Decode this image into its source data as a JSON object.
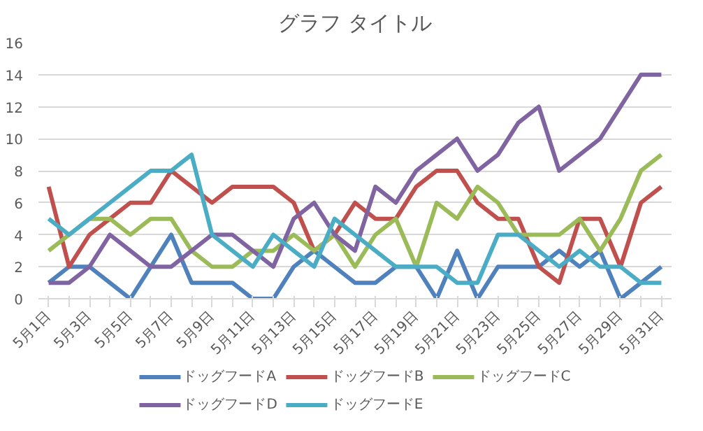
{
  "chart_data": {
    "type": "line",
    "title": "グラフ タイトル",
    "categories": [
      "5月1日",
      null,
      "5月3日",
      null,
      "5月5日",
      null,
      "5月7日",
      null,
      "5月9日",
      null,
      "5月11日",
      null,
      "5月13日",
      null,
      "5月15日",
      null,
      "5月17日",
      null,
      "5月19日",
      null,
      "5月21日",
      null,
      "5月23日",
      null,
      "5月25日",
      null,
      "5月27日",
      null,
      "5月29日",
      null,
      "5月31日"
    ],
    "series": [
      {
        "name": "ドッグフードA",
        "color": "#4f81bd",
        "values": [
          1,
          2,
          2,
          1,
          0,
          2,
          4,
          1,
          1,
          1,
          0,
          0,
          2,
          3,
          2,
          1,
          1,
          2,
          2,
          0,
          3,
          0,
          2,
          2,
          2,
          3,
          2,
          3,
          0,
          1,
          2
        ]
      },
      {
        "name": "ドッグフードB",
        "color": "#c0504d",
        "values": [
          7,
          2,
          4,
          5,
          6,
          6,
          8,
          7,
          6,
          7,
          7,
          7,
          6,
          3,
          4,
          6,
          5,
          5,
          7,
          8,
          8,
          6,
          5,
          5,
          2,
          1,
          5,
          5,
          2,
          6,
          7
        ]
      },
      {
        "name": "ドッグフードC",
        "color": "#9bbb59",
        "values": [
          3,
          4,
          5,
          5,
          4,
          5,
          5,
          3,
          2,
          2,
          3,
          3,
          4,
          3,
          4,
          2,
          4,
          5,
          2,
          6,
          5,
          7,
          6,
          4,
          4,
          4,
          5,
          3,
          5,
          8,
          9
        ]
      },
      {
        "name": "ドッグフードD",
        "color": "#8064a2",
        "values": [
          1,
          1,
          2,
          4,
          3,
          2,
          2,
          3,
          4,
          4,
          3,
          2,
          5,
          6,
          4,
          3,
          7,
          6,
          8,
          9,
          10,
          8,
          9,
          11,
          12,
          8,
          9,
          10,
          12,
          14,
          14
        ]
      },
      {
        "name": "ドッグフードE",
        "color": "#4bacc6",
        "values": [
          5,
          4,
          5,
          6,
          7,
          8,
          8,
          9,
          4,
          3,
          2,
          4,
          3,
          2,
          5,
          4,
          3,
          2,
          2,
          2,
          1,
          1,
          4,
          4,
          3,
          2,
          3,
          2,
          2,
          1,
          1
        ]
      }
    ],
    "ylim": [
      0,
      16
    ],
    "yticks": [
      0,
      2,
      4,
      6,
      8,
      10,
      12,
      14,
      16
    ],
    "grid": "y",
    "legend": "bottom"
  }
}
